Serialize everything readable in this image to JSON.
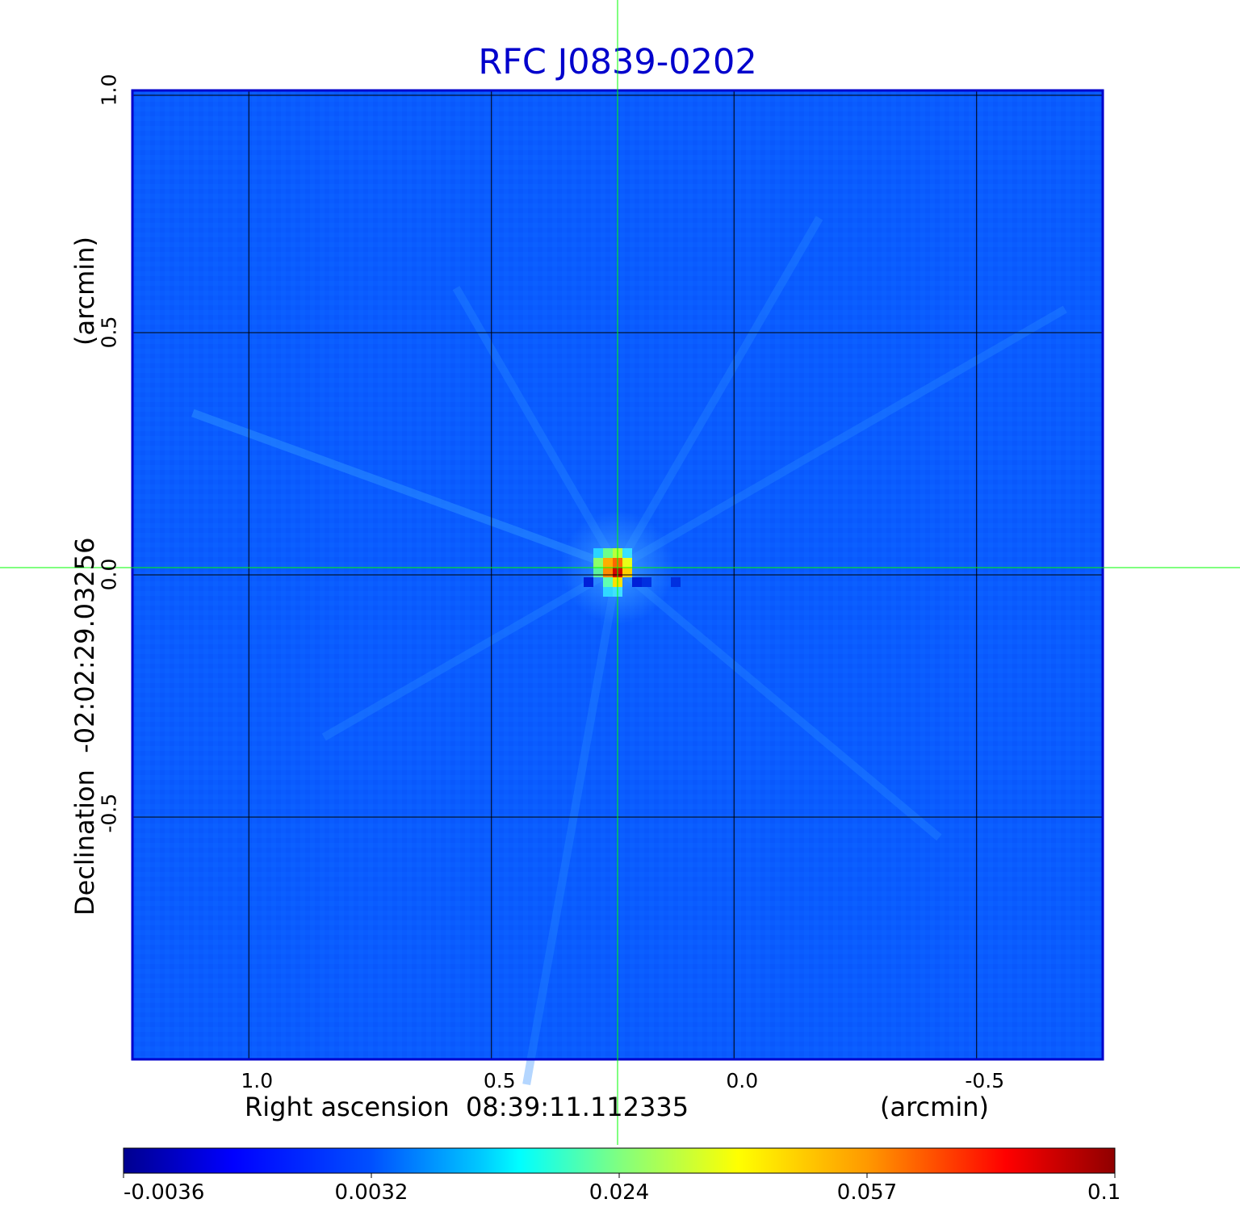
{
  "chart_data": {
    "type": "heatmap",
    "title": "RFC J0839-0202",
    "xlabel": "Right ascension  08:39:11.112335",
    "x_unit": "(arcmin)",
    "ylabel": "Declination  -02:02:29.03256",
    "y_unit": "(arcmin)",
    "xlim": [
      1.24,
      -0.76
    ],
    "ylim": [
      -1.0,
      1.0
    ],
    "x_ticks": [
      "1.0",
      "0.5",
      "0.0",
      "-0.5"
    ],
    "y_ticks": [
      "-0.5",
      "0.0",
      "0.5",
      "1.0"
    ],
    "grid": true,
    "crosshair": {
      "x": 0.24,
      "y": 0.015
    },
    "colormap": "jet",
    "colorbar_ticks": [
      "-0.0036",
      "0.0032",
      "0.024",
      "0.057",
      "0.1"
    ],
    "peak": {
      "x": 0.24,
      "y": 0.015,
      "value": 0.1
    }
  },
  "colors": {
    "title": "#0000cc",
    "frame": "#0000cc",
    "grid": "#000000",
    "crosshair": "#00ff00",
    "background_field": "#0a5cff"
  }
}
